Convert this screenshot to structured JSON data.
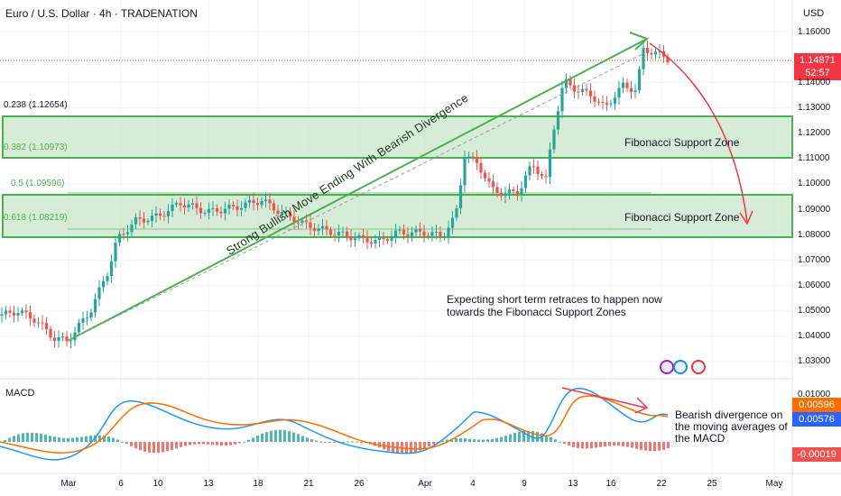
{
  "header": {
    "title": "Euro / U.S. Dollar · 4h · TRADENATION",
    "currency": "USD"
  },
  "price_tags": [
    {
      "value": "1.14871",
      "color": "#f23645"
    },
    {
      "value": "52:57",
      "color": "#f23645"
    }
  ],
  "macd_tags": [
    {
      "value": "0.00596",
      "color": "#ff6d00",
      "text_color": "#ffffff"
    },
    {
      "value": "0.00576",
      "color": "#2962ff",
      "text_color": "#ffffff"
    },
    {
      "value": "-0.00019",
      "color": "#ef5350",
      "text_color": "#ffffff"
    }
  ],
  "fib_levels": [
    {
      "label": "0.238 (1.12654)",
      "color": "#131722"
    },
    {
      "label": "0.382 (1.10973)",
      "color": "#4caf50"
    },
    {
      "label": "0.5 (1.09596)",
      "color": "#4caf50"
    },
    {
      "label": "0.618 (1.08219)",
      "color": "#4caf50"
    }
  ],
  "zones": [
    {
      "label": "Fibonacci Support Zone"
    },
    {
      "label": "Fibonacci Support Zone"
    }
  ],
  "annotations": {
    "trend_text": "Strong Bullish Move Ending With Bearish Divergence",
    "note_line1": "Expecting short term retraces to happen now",
    "note_line2": "towards the Fibonacci Support Zones",
    "macd_note_line1": "Bearish divergence on",
    "macd_note_line2": "the moving averages of",
    "macd_note_line3": "the MACD"
  },
  "macd_label": "MACD",
  "y_axis_ticks": [
    "1.16000",
    "1.14000",
    "1.13000",
    "1.12000",
    "1.11000",
    "1.10000",
    "1.09000",
    "1.08000",
    "1.07000",
    "1.06000",
    "1.05000",
    "1.04000",
    "1.03000"
  ],
  "macd_axis_ticks": [
    "0.01000"
  ],
  "x_axis_ticks": [
    "Mar",
    "6",
    "10",
    "13",
    "18",
    "21",
    "26",
    "Apr",
    "4",
    "9",
    "13",
    "16",
    "22",
    "25",
    "May"
  ],
  "colors": {
    "up": "#26a69a",
    "down": "#ef5350",
    "zone_fill": "#c8e6c9",
    "zone_border": "#4caf50",
    "trend": "#4caf50",
    "arrow": "#f23645",
    "macd_line": "#2196f3",
    "signal_line": "#ff6d00"
  }
}
